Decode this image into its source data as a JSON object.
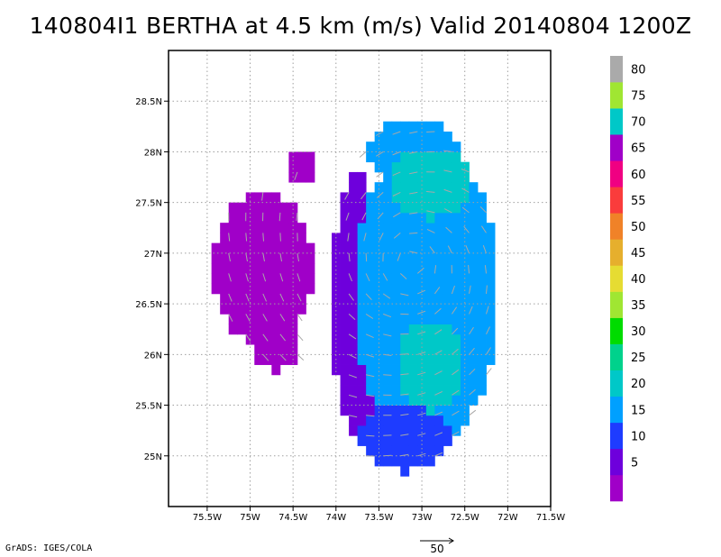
{
  "title": "140804I1 BERTHA at 4.5 km (m/s) Valid 20140804 1200Z",
  "credit": "GrADS: IGES/COLA",
  "colors": {
    "grid": "#a0a0a0",
    "vector": "#a8a8a8",
    "frame": "#000000"
  },
  "chart_data": {
    "type": "heatmap",
    "title": "140804I1 BERTHA at 4.5 km (m/s) Valid 20140804 1200Z",
    "xlim": [
      -75.95,
      -71.5
    ],
    "ylim": [
      24.5,
      29.0
    ],
    "x_ticks": [
      -75.5,
      -75.0,
      -74.5,
      -74.0,
      -73.5,
      -73.0,
      -72.5,
      -72.0,
      -71.5
    ],
    "x_tick_labels": [
      "75.5W",
      "75W",
      "74.5W",
      "74W",
      "73.5W",
      "73W",
      "72.5W",
      "72W",
      "71.5W"
    ],
    "y_ticks": [
      25.0,
      25.5,
      26.0,
      26.5,
      27.0,
      27.5,
      28.0,
      28.5
    ],
    "y_tick_labels": [
      "25N",
      "25.5N",
      "26N",
      "26.5N",
      "27N",
      "27.5N",
      "28N",
      "28.5N"
    ],
    "grid": true,
    "colorbar": {
      "placement": "right",
      "bins": [
        {
          "label": "",
          "color": "#a000c8"
        },
        {
          "label": "5",
          "color": "#6e00dc"
        },
        {
          "label": "10",
          "color": "#1e3cff"
        },
        {
          "label": "15",
          "color": "#00a0ff"
        },
        {
          "label": "20",
          "color": "#00c8c8"
        },
        {
          "label": "25",
          "color": "#00d28c"
        },
        {
          "label": "30",
          "color": "#00dc00"
        },
        {
          "label": "35",
          "color": "#a0e632"
        },
        {
          "label": "40",
          "color": "#e6dc32"
        },
        {
          "label": "45",
          "color": "#e6af2d"
        },
        {
          "label": "50",
          "color": "#f08228"
        },
        {
          "label": "55",
          "color": "#fa3c3c"
        },
        {
          "label": "60",
          "color": "#f00082"
        },
        {
          "label": "65",
          "color": "#a000c8"
        },
        {
          "label": "70",
          "color": "#00c8c8"
        },
        {
          "label": "75",
          "color": "#a0e632"
        },
        {
          "label": "80",
          "color": "#aaaaaa"
        }
      ]
    },
    "vector_scale_label": "50",
    "storm_center": [
      -73.1,
      26.9
    ],
    "regions": [
      {
        "name": "west-purple-cluster",
        "value": 3,
        "ellipse": {
          "cx": -74.85,
          "cy": 26.85,
          "rx": 0.6,
          "ry": 0.75
        }
      },
      {
        "name": "west-purple-tail",
        "value": 3,
        "ellipse": {
          "cx": -74.7,
          "cy": 26.1,
          "rx": 0.3,
          "ry": 0.25
        }
      },
      {
        "name": "northwest-purple",
        "value": 3,
        "ellipse": {
          "cx": -74.4,
          "cy": 27.85,
          "rx": 0.15,
          "ry": 0.15
        }
      },
      {
        "name": "inner-blue-band",
        "value": 8,
        "ellipse": {
          "cx": -73.75,
          "cy": 26.5,
          "rx": 0.3,
          "ry": 1.3
        }
      },
      {
        "name": "main-core",
        "value": 17,
        "ellipse": {
          "cx": -72.95,
          "cy": 26.6,
          "rx": 0.85,
          "ry": 1.5
        }
      },
      {
        "name": "north-lobe",
        "value": 18,
        "ellipse": {
          "cx": -73.1,
          "cy": 28.0,
          "rx": 0.55,
          "ry": 0.3
        }
      },
      {
        "name": "south-lobe",
        "value": 13,
        "ellipse": {
          "cx": -73.2,
          "cy": 25.2,
          "rx": 0.55,
          "ry": 0.35
        }
      },
      {
        "name": "southeast-teal-band",
        "value": 21,
        "ellipse": {
          "cx": -72.9,
          "cy": 25.9,
          "rx": 0.4,
          "ry": 0.45
        }
      },
      {
        "name": "north-teal-band",
        "value": 22,
        "ellipse": {
          "cx": -72.9,
          "cy": 27.7,
          "rx": 0.45,
          "ry": 0.35
        }
      }
    ]
  }
}
